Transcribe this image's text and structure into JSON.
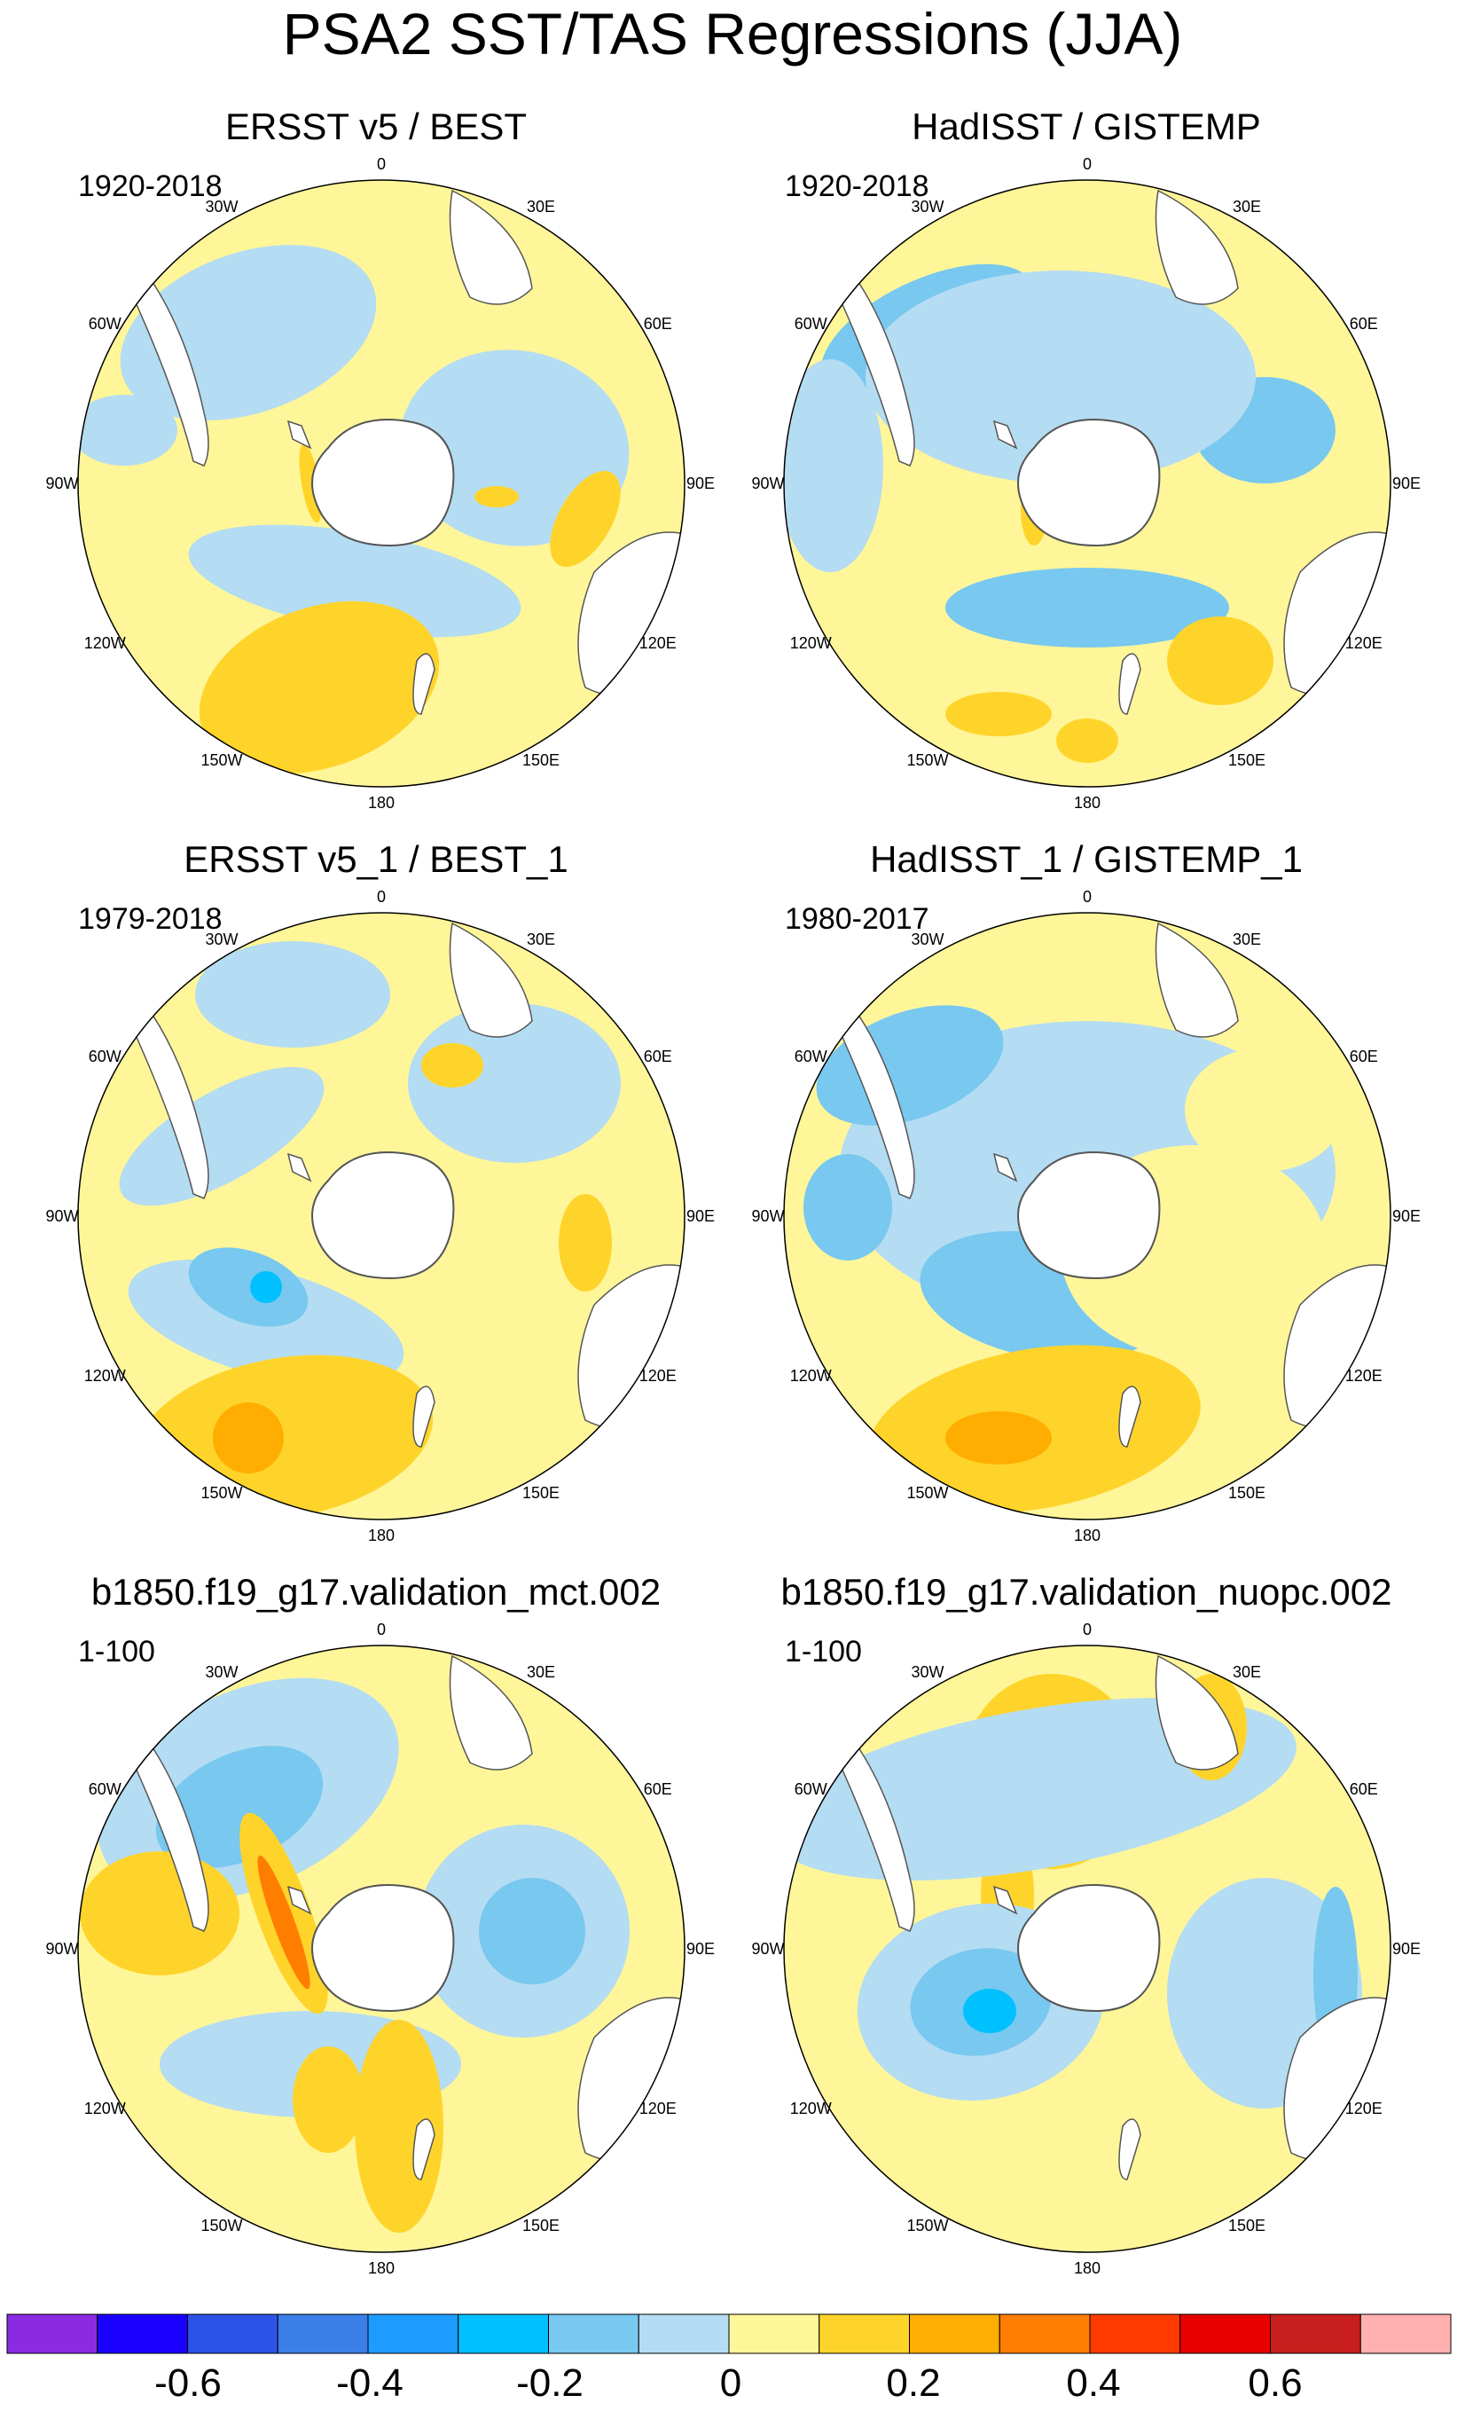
{
  "figure": {
    "title": "PSA2 SST/TAS Regressions (JJA)"
  },
  "panels": [
    {
      "title": "ERSST v5 / BEST",
      "period": "1920-2018"
    },
    {
      "title": "HadISST / GISTEMP",
      "period": "1920-2018"
    },
    {
      "title": "ERSST v5_1 / BEST_1",
      "period": "1979-2018"
    },
    {
      "title": "HadISST_1 / GISTEMP_1",
      "period": "1980-2017"
    },
    {
      "title": "b1850.f19_g17.validation_mct.002",
      "period": "1-100"
    },
    {
      "title": "b1850.f19_g17.validation_nuopc.002",
      "period": "1-100"
    }
  ],
  "longitude_labels": [
    "0",
    "30E",
    "60E",
    "90E",
    "120E",
    "150E",
    "180",
    "150W",
    "120W",
    "90W",
    "60W",
    "30W"
  ],
  "colorbar": {
    "colors": [
      "#8a2be2",
      "#1a00ff",
      "#2d53e6",
      "#3a7fe8",
      "#1e9bff",
      "#00c0ff",
      "#78c8f0",
      "#b4dcf2",
      "#fff69a",
      "#ffd42a",
      "#ffad00",
      "#ff7e00",
      "#ff3a00",
      "#e80000",
      "#c81e1e",
      "#ffb0b0"
    ],
    "tick_labels": [
      "-0.6",
      "-0.4",
      "-0.2",
      "0",
      "0.2",
      "0.4",
      "0.6"
    ]
  },
  "palette": {
    "land": "#ffffff",
    "coast": "#555555"
  }
}
